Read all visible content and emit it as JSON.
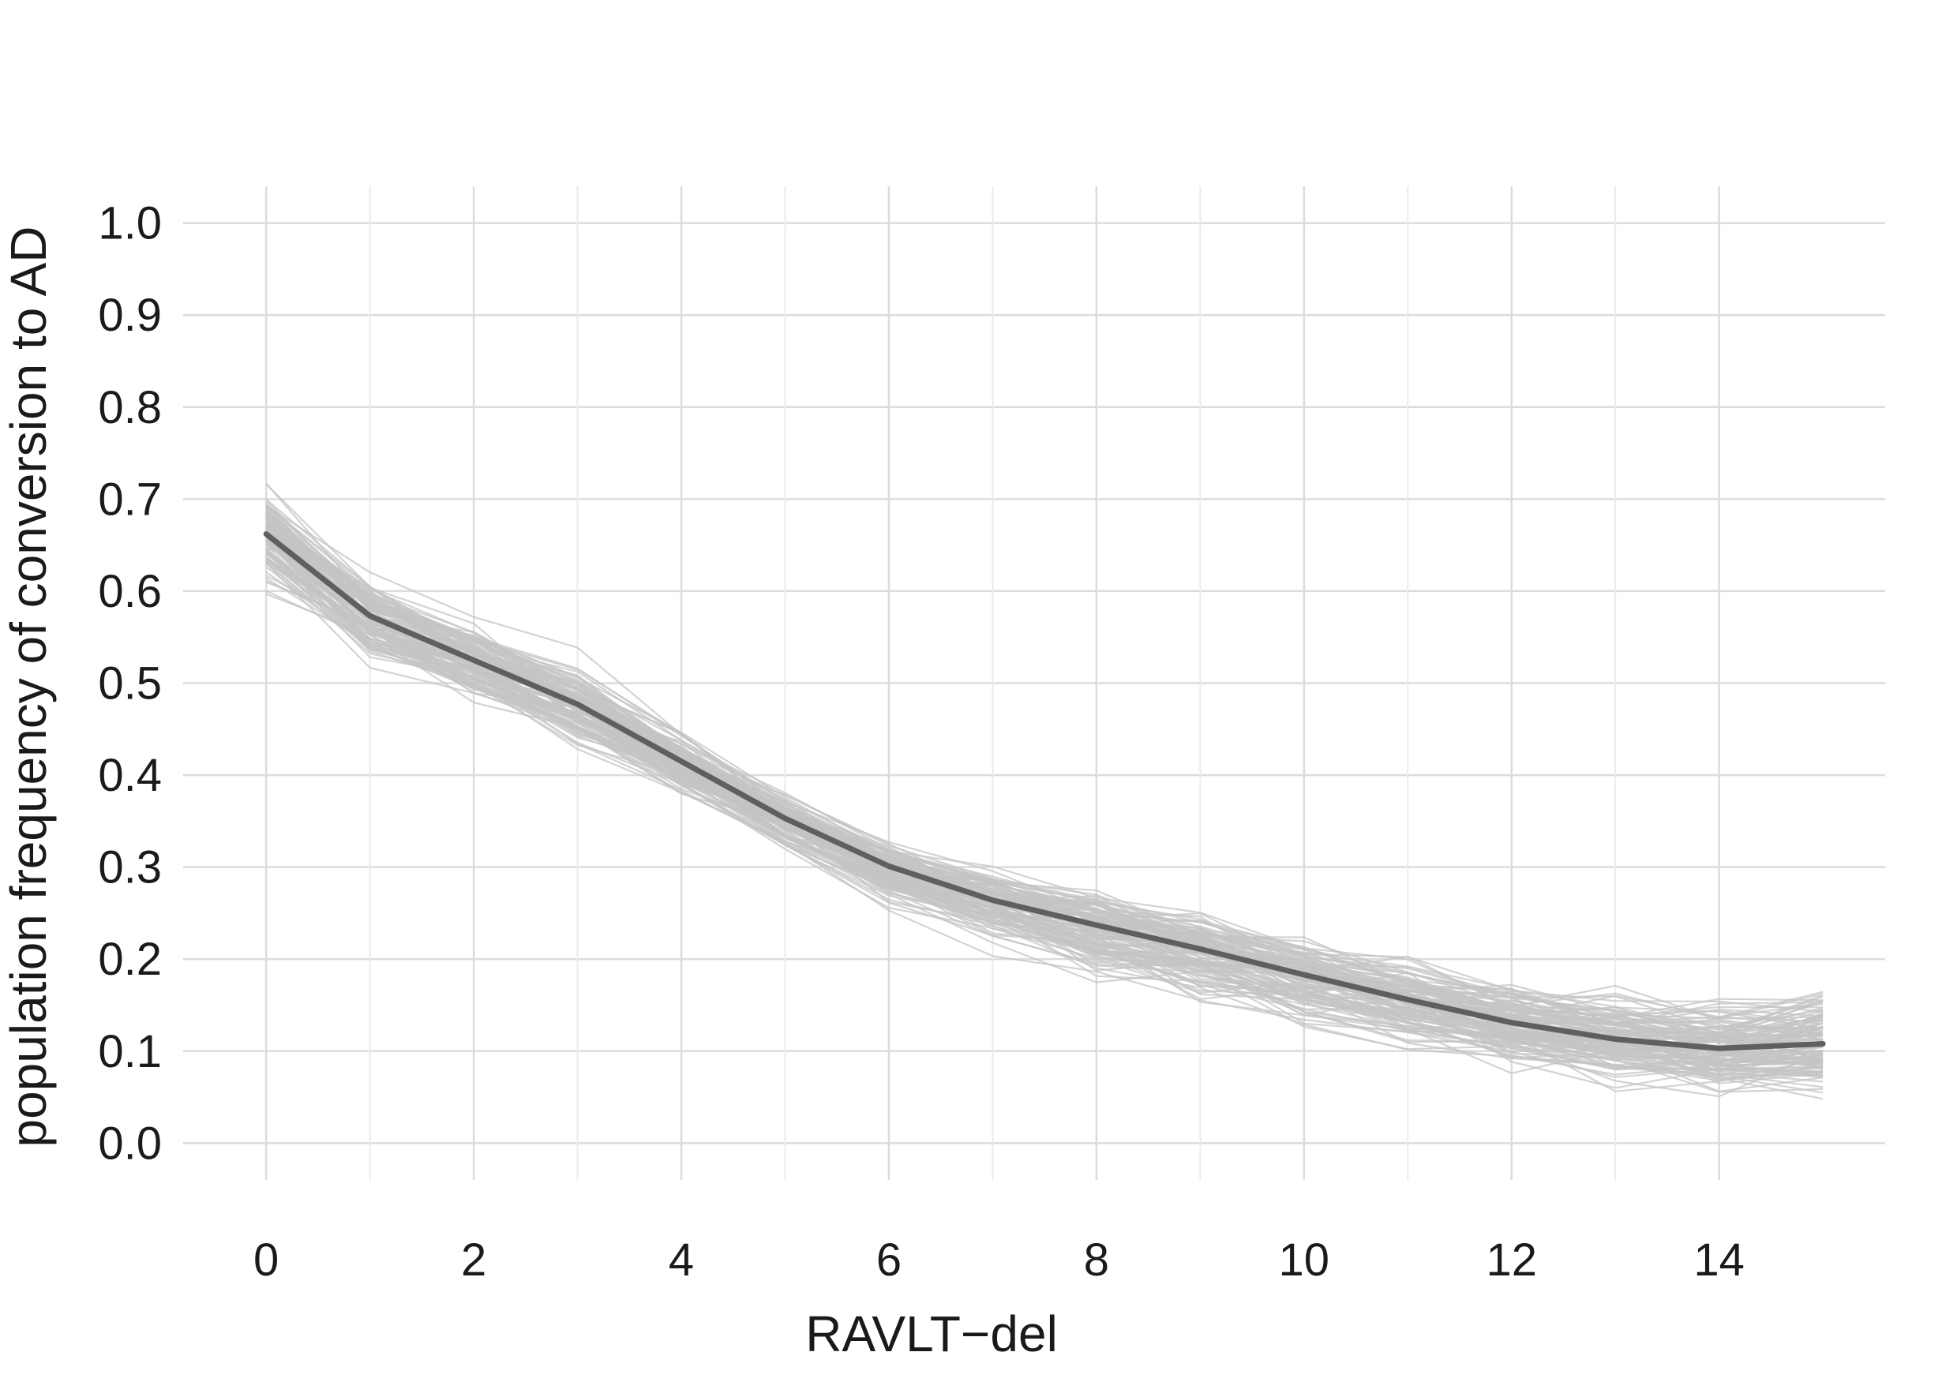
{
  "chart_data": {
    "type": "line",
    "title": "",
    "xlabel": "RAVLT−del",
    "ylabel": "population frequency of conversion to AD",
    "x": [
      0,
      1,
      2,
      3,
      4,
      5,
      6,
      7,
      8,
      9,
      10,
      11,
      12,
      13,
      14,
      15
    ],
    "xlim": [
      -0.8,
      15.6
    ],
    "ylim": [
      -0.04,
      1.04
    ],
    "x_ticks": [
      "0",
      "2",
      "4",
      "6",
      "8",
      "10",
      "12",
      "14"
    ],
    "x_tick_values": [
      0,
      2,
      4,
      6,
      8,
      10,
      12,
      14
    ],
    "y_ticks": [
      "0.0",
      "0.1",
      "0.2",
      "0.3",
      "0.4",
      "0.5",
      "0.6",
      "0.7",
      "0.8",
      "0.9",
      "1.0"
    ],
    "y_tick_values": [
      0.0,
      0.1,
      0.2,
      0.3,
      0.4,
      0.5,
      0.6,
      0.7,
      0.8,
      0.9,
      1.0
    ],
    "grid": true,
    "legend": "none",
    "mean_series": {
      "values": [
        0.662,
        0.573,
        0.525,
        0.477,
        0.415,
        0.353,
        0.301,
        0.264,
        0.237,
        0.211,
        0.183,
        0.156,
        0.131,
        0.113,
        0.103,
        0.108
      ],
      "color": "#5f5f5f"
    },
    "bootstrap_series": {
      "count": 120,
      "color": "#c4c4c4",
      "lower_envelope": [
        0.58,
        0.49,
        0.45,
        0.41,
        0.36,
        0.3,
        0.24,
        0.19,
        0.15,
        0.12,
        0.1,
        0.08,
        0.06,
        0.04,
        0.035,
        0.025
      ],
      "upper_envelope": [
        0.75,
        0.65,
        0.6,
        0.55,
        0.47,
        0.4,
        0.35,
        0.32,
        0.3,
        0.28,
        0.25,
        0.23,
        0.21,
        0.2,
        0.19,
        0.245
      ]
    }
  }
}
